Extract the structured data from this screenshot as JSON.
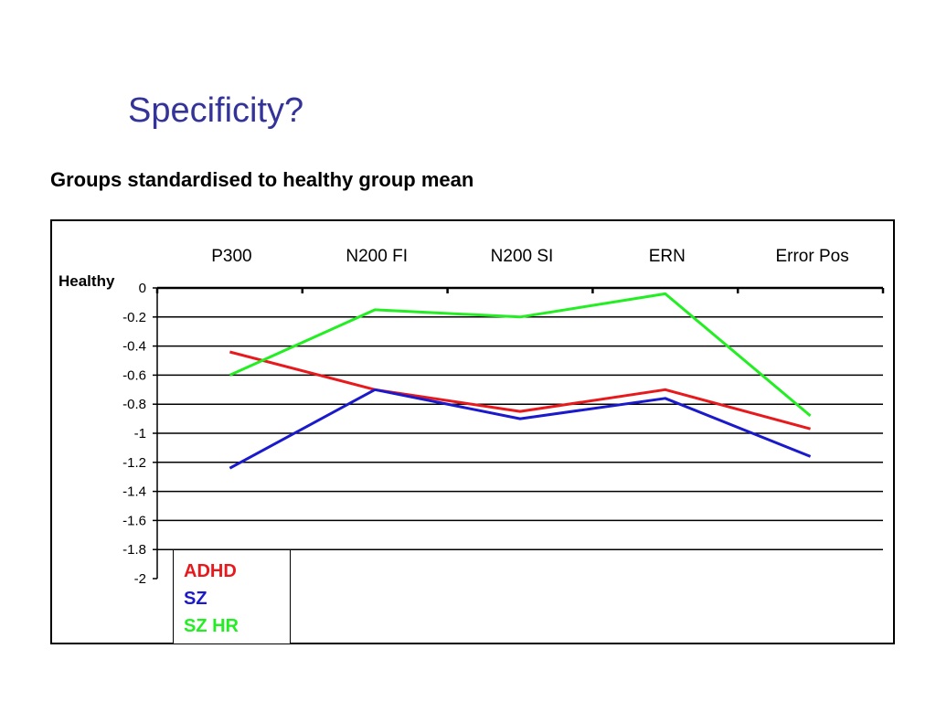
{
  "slide": {
    "title": "Specificity?",
    "subtitle": "Groups standardised to healthy group mean"
  },
  "chart_data": {
    "type": "line",
    "categories": [
      "P300",
      "N200 FI",
      "N200 SI",
      "ERN",
      "Error Pos"
    ],
    "category_axis_position": "top",
    "ylabel": "Healthy",
    "ylim": [
      -2,
      0
    ],
    "yticks": [
      0,
      -0.2,
      -0.4,
      -0.6,
      -0.8,
      -1,
      -1.2,
      -1.4,
      -1.6,
      -1.8,
      -2
    ],
    "ytick_labels": [
      "0",
      "-0.2",
      "-0.4",
      "-0.6",
      "-0.8",
      "-1",
      "-1.2",
      "-1.4",
      "-1.6",
      "-1.8",
      "-2"
    ],
    "grid": true,
    "legend_position": "bottom-left",
    "series": [
      {
        "name": "ADHD",
        "color": "#e8191d",
        "values": [
          -0.44,
          -0.7,
          -0.85,
          -0.7,
          -0.97
        ]
      },
      {
        "name": "SZ",
        "color": "#1a1acc",
        "values": [
          -1.24,
          -0.7,
          -0.9,
          -0.76,
          -1.16
        ]
      },
      {
        "name": "SZ HR",
        "color": "#22ee22",
        "values": [
          -0.6,
          -0.15,
          -0.2,
          -0.04,
          -0.88
        ]
      }
    ]
  }
}
